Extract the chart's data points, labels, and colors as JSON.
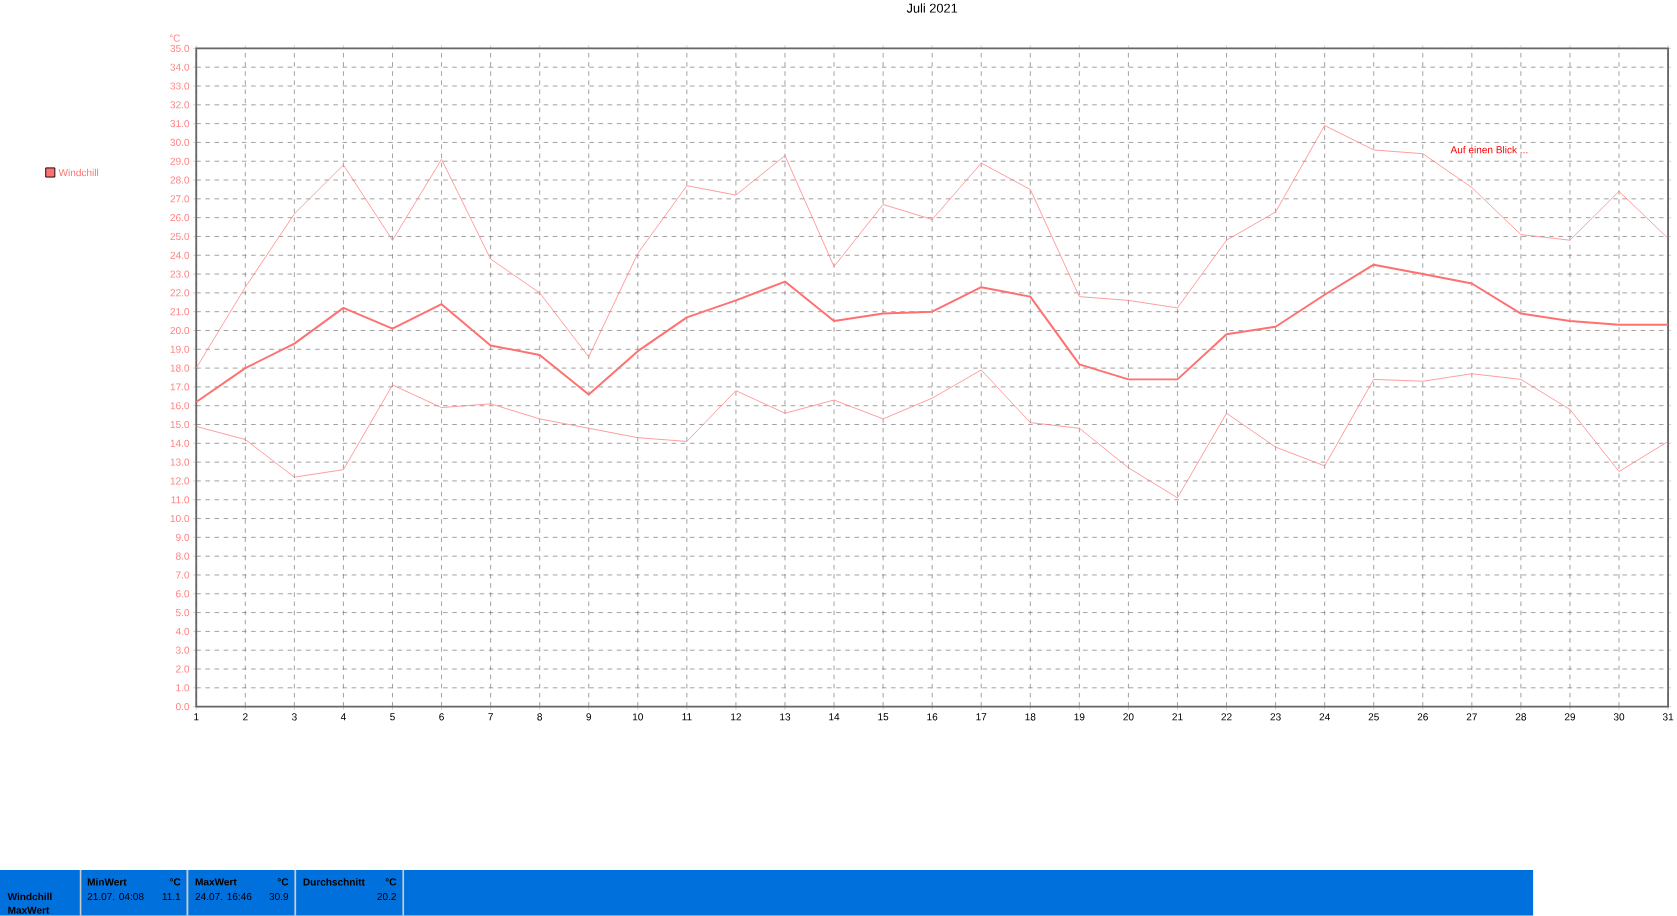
{
  "chart_data": {
    "type": "line",
    "title": "Juli 2021",
    "ylabel": "°C",
    "x": [
      1,
      2,
      3,
      4,
      5,
      6,
      7,
      8,
      9,
      10,
      11,
      12,
      13,
      14,
      15,
      16,
      17,
      18,
      19,
      20,
      21,
      22,
      23,
      24,
      25,
      26,
      27,
      28,
      29,
      30,
      31
    ],
    "series": [
      {
        "color": "#ff8080",
        "values": [
          18.0,
          22.3,
          26.2,
          28.8,
          24.8,
          29.1,
          23.8,
          22.0,
          18.6,
          24.1,
          27.7,
          27.2,
          29.3,
          23.4,
          26.7,
          25.9,
          28.9,
          27.5,
          21.8,
          21.6,
          21.2,
          24.8,
          26.3,
          30.9,
          29.6,
          29.4,
          27.6,
          25.1,
          24.8,
          27.4,
          24.9
        ]
      },
      {
        "name": "Windchill",
        "color": "#ff7070",
        "values": [
          16.2,
          18.0,
          19.3,
          21.2,
          20.1,
          21.4,
          19.2,
          18.7,
          16.6,
          18.9,
          20.7,
          21.6,
          22.6,
          20.5,
          20.9,
          21.0,
          22.3,
          21.8,
          18.2,
          17.4,
          17.4,
          19.8,
          20.2,
          21.9,
          23.5,
          23.0,
          22.5,
          20.9,
          20.5,
          20.3,
          20.3
        ]
      },
      {
        "color": "#ff8080",
        "values": [
          14.9,
          14.2,
          12.2,
          12.6,
          17.1,
          15.9,
          16.1,
          15.3,
          14.8,
          14.3,
          14.1,
          16.8,
          15.6,
          16.3,
          15.3,
          16.4,
          17.9,
          15.1,
          14.8,
          12.7,
          11.1,
          15.6,
          13.8,
          12.8,
          17.4,
          17.3,
          17.7,
          17.4,
          15.8,
          12.5,
          14.1
        ]
      }
    ],
    "xlim": [
      1,
      31
    ],
    "xticks": [
      1,
      2,
      3,
      4,
      5,
      6,
      7,
      8,
      9,
      10,
      11,
      12,
      13,
      14,
      15,
      16,
      17,
      18,
      19,
      20,
      21,
      22,
      23,
      24,
      25,
      26,
      27,
      28,
      29,
      30,
      31
    ],
    "ylim": [
      0,
      35
    ],
    "yticks": [
      {
        "value": 0,
        "label": "0.0"
      },
      {
        "value": 1,
        "label": "1.0"
      },
      {
        "value": 2,
        "label": "2.0"
      },
      {
        "value": 3,
        "label": "3.0"
      },
      {
        "value": 4,
        "label": "4.0"
      },
      {
        "value": 5,
        "label": "5.0"
      },
      {
        "value": 6,
        "label": "6.0"
      },
      {
        "value": 7,
        "label": "7.0"
      },
      {
        "value": 8,
        "label": "8.0"
      },
      {
        "value": 9,
        "label": "9.0"
      },
      {
        "value": 10,
        "label": "10.0"
      },
      {
        "value": 11,
        "label": "11.0"
      },
      {
        "value": 12,
        "label": "12.0"
      },
      {
        "value": 13,
        "label": "13.0"
      },
      {
        "value": 14,
        "label": "14.0"
      },
      {
        "value": 15,
        "label": "15.0"
      },
      {
        "value": 16,
        "label": "16.0"
      },
      {
        "value": 17,
        "label": "17.0"
      },
      {
        "value": 18,
        "label": "18.0"
      },
      {
        "value": 19,
        "label": "19.0"
      },
      {
        "value": 20,
        "label": "20.0"
      },
      {
        "value": 21,
        "label": "21.0"
      },
      {
        "value": 22,
        "label": "22.0"
      },
      {
        "value": 23,
        "label": "23.0"
      },
      {
        "value": 24,
        "label": "24.0"
      },
      {
        "value": 25,
        "label": "25.0"
      },
      {
        "value": 26,
        "label": "26.0"
      },
      {
        "value": 27,
        "label": "27.0"
      },
      {
        "value": 28,
        "label": "28.0"
      },
      {
        "value": 29,
        "label": "29.0"
      },
      {
        "value": 30,
        "label": "30.0"
      },
      {
        "value": 31,
        "label": "31.0"
      },
      {
        "value": 32,
        "label": "32.0"
      },
      {
        "value": 33,
        "label": "33.0"
      },
      {
        "value": 34,
        "label": "34.0"
      },
      {
        "value": 35,
        "label": "35.0"
      }
    ],
    "grid": true,
    "legend": "top left",
    "marker": "none",
    "line_style": "solid",
    "annotations": [
      "Auf einen Blick ...",
      "Windchill",
      "MaxWert",
      "MinWert",
      "°C",
      "21.07. 04:08",
      "11.1",
      "MaxWert",
      "°C",
      "24.07. 16:46",
      "30.9",
      "Durchschnitt",
      "°C",
      "20.2"
    ]
  }
}
